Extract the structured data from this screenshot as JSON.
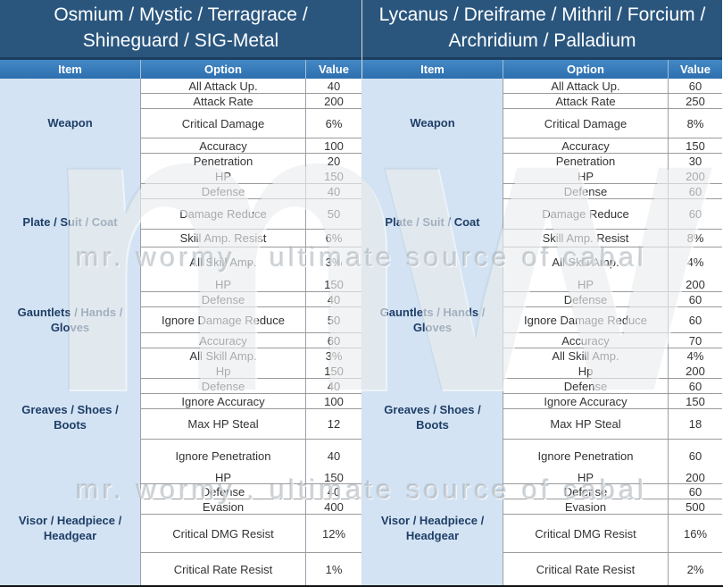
{
  "columns": [
    "Item",
    "Option",
    "Value"
  ],
  "watermark": {
    "logo": "mw",
    "band_text": "mr. wormy . ultimate source of cabal"
  },
  "colors": {
    "title_bg": "#2A567E",
    "header_bg": "#3579B8",
    "item_cell_bg": "#D3E3F3",
    "item_text": "#1F3E67",
    "section_border": "#141414"
  },
  "tables": [
    {
      "title": "Osmium / Mystic / Terragrace / Shineguard / SIG-Metal",
      "sections": [
        {
          "item": "Weapon",
          "rows": [
            {
              "option": "All Attack Up.",
              "value": "40"
            },
            {
              "option": "Attack Rate",
              "value": "200"
            },
            {
              "option": "Critical Damage",
              "value": "6%"
            },
            {
              "option": "Accuracy",
              "value": "100"
            },
            {
              "option": "Penetration",
              "value": "20"
            }
          ]
        },
        {
          "item": "Plate / Suit / Coat",
          "rows": [
            {
              "option": "HP",
              "value": "150"
            },
            {
              "option": "Defense",
              "value": "40"
            },
            {
              "option": "Damage Reduce",
              "value": "50"
            },
            {
              "option": "Skill Amp. Resist",
              "value": "6%"
            },
            {
              "option": "All Skill Amp.",
              "value": "3%"
            }
          ]
        },
        {
          "item": "Gauntlets / Hands / Gloves",
          "rows": [
            {
              "option": "HP",
              "value": "150"
            },
            {
              "option": "Defense",
              "value": "40"
            },
            {
              "option": "Ignore Damage Reduce",
              "value": "50"
            },
            {
              "option": "Accuracy",
              "value": "60"
            },
            {
              "option": "All Skill Amp.",
              "value": "3%"
            }
          ]
        },
        {
          "item": "Greaves / Shoes / Boots",
          "rows": [
            {
              "option": "Hp",
              "value": "150"
            },
            {
              "option": "Defense",
              "value": "40"
            },
            {
              "option": "Ignore Accuracy",
              "value": "100"
            },
            {
              "option": "Max HP Steal",
              "value": "12"
            },
            {
              "option": "Ignore Penetration",
              "value": "40"
            }
          ]
        },
        {
          "item": "Visor / Headpiece / Headgear",
          "rows": [
            {
              "option": "HP",
              "value": "150"
            },
            {
              "option": "Defense",
              "value": "40"
            },
            {
              "option": "Evasion",
              "value": "400"
            },
            {
              "option": "Critical DMG Resist",
              "value": "12%"
            },
            {
              "option": "Critical Rate Resist",
              "value": "1%"
            }
          ]
        }
      ]
    },
    {
      "title": "Lycanus / Dreiframe / Mithril / Forcium / Archridium / Palladium",
      "sections": [
        {
          "item": "Weapon",
          "rows": [
            {
              "option": "All Attack Up.",
              "value": "60"
            },
            {
              "option": "Attack Rate",
              "value": "250"
            },
            {
              "option": "Critical Damage",
              "value": "8%"
            },
            {
              "option": "Accuracy",
              "value": "150"
            },
            {
              "option": "Penetration",
              "value": "30"
            }
          ]
        },
        {
          "item": "Plate / Suit / Coat",
          "rows": [
            {
              "option": "HP",
              "value": "200"
            },
            {
              "option": "Defense",
              "value": "60"
            },
            {
              "option": "Damage Reduce",
              "value": "60"
            },
            {
              "option": "Skill Amp. Resist",
              "value": "8%"
            },
            {
              "option": "All Skill Amp.",
              "value": "4%"
            }
          ]
        },
        {
          "item": "Gauntlets / Hands / Gloves",
          "rows": [
            {
              "option": "HP",
              "value": "200"
            },
            {
              "option": "Defense",
              "value": "60"
            },
            {
              "option": "Ignore Damage Reduce",
              "value": "60"
            },
            {
              "option": "Accuracy",
              "value": "70"
            },
            {
              "option": "All Skill Amp.",
              "value": "4%"
            }
          ]
        },
        {
          "item": "Greaves / Shoes / Boots",
          "rows": [
            {
              "option": "Hp",
              "value": "200"
            },
            {
              "option": "Defense",
              "value": "60"
            },
            {
              "option": "Ignore Accuracy",
              "value": "150"
            },
            {
              "option": "Max HP Steal",
              "value": "18"
            },
            {
              "option": "Ignore Penetration",
              "value": "60"
            }
          ]
        },
        {
          "item": "Visor / Headpiece / Headgear",
          "rows": [
            {
              "option": "HP",
              "value": "200"
            },
            {
              "option": "Defense",
              "value": "60"
            },
            {
              "option": "Evasion",
              "value": "500"
            },
            {
              "option": "Critical DMG Resist",
              "value": "16%"
            },
            {
              "option": "Critical Rate Resist",
              "value": "2%"
            }
          ]
        }
      ]
    }
  ]
}
